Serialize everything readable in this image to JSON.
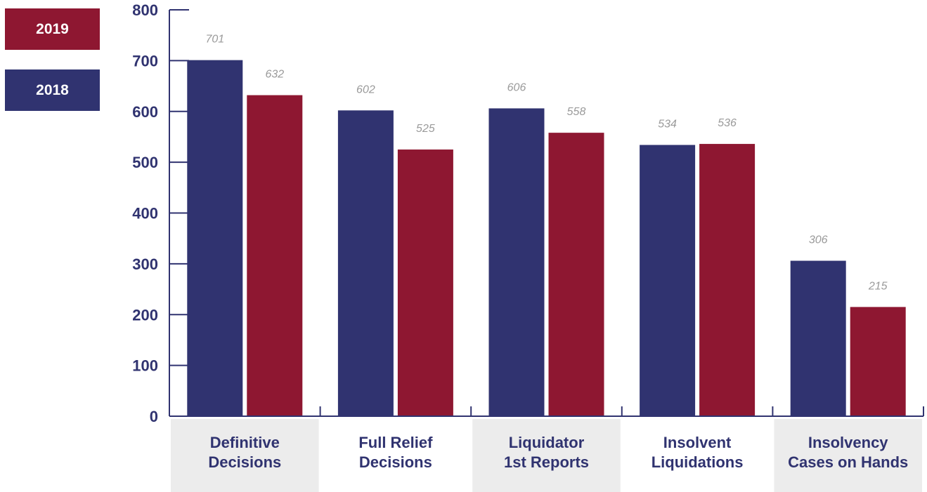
{
  "colors": {
    "2018": "#303370",
    "2019": "#8e1731",
    "axis": "#303370",
    "label_bg": "#ececec",
    "value_label": "#9a9a9a"
  },
  "legend": [
    {
      "label": "2019",
      "color": "#8e1731"
    },
    {
      "label": "2018",
      "color": "#303370"
    }
  ],
  "chart_data": {
    "type": "bar",
    "categories": [
      [
        "Definitive",
        "Decisions"
      ],
      [
        "Full Relief",
        "Decisions"
      ],
      [
        "Liquidator",
        "1st Reports"
      ],
      [
        "Insolvent",
        "Liquidations"
      ],
      [
        "Insolvency",
        "Cases on Hands"
      ]
    ],
    "series": [
      {
        "name": "2018",
        "values": [
          701,
          602,
          606,
          534,
          306
        ]
      },
      {
        "name": "2019",
        "values": [
          632,
          525,
          558,
          536,
          215
        ]
      }
    ],
    "title": "",
    "xlabel": "",
    "ylabel": "",
    "ylim": [
      0,
      800
    ],
    "yticks": [
      0,
      100,
      200,
      300,
      400,
      500,
      600,
      700,
      800
    ],
    "grid": false,
    "legend_position": "top-left"
  }
}
